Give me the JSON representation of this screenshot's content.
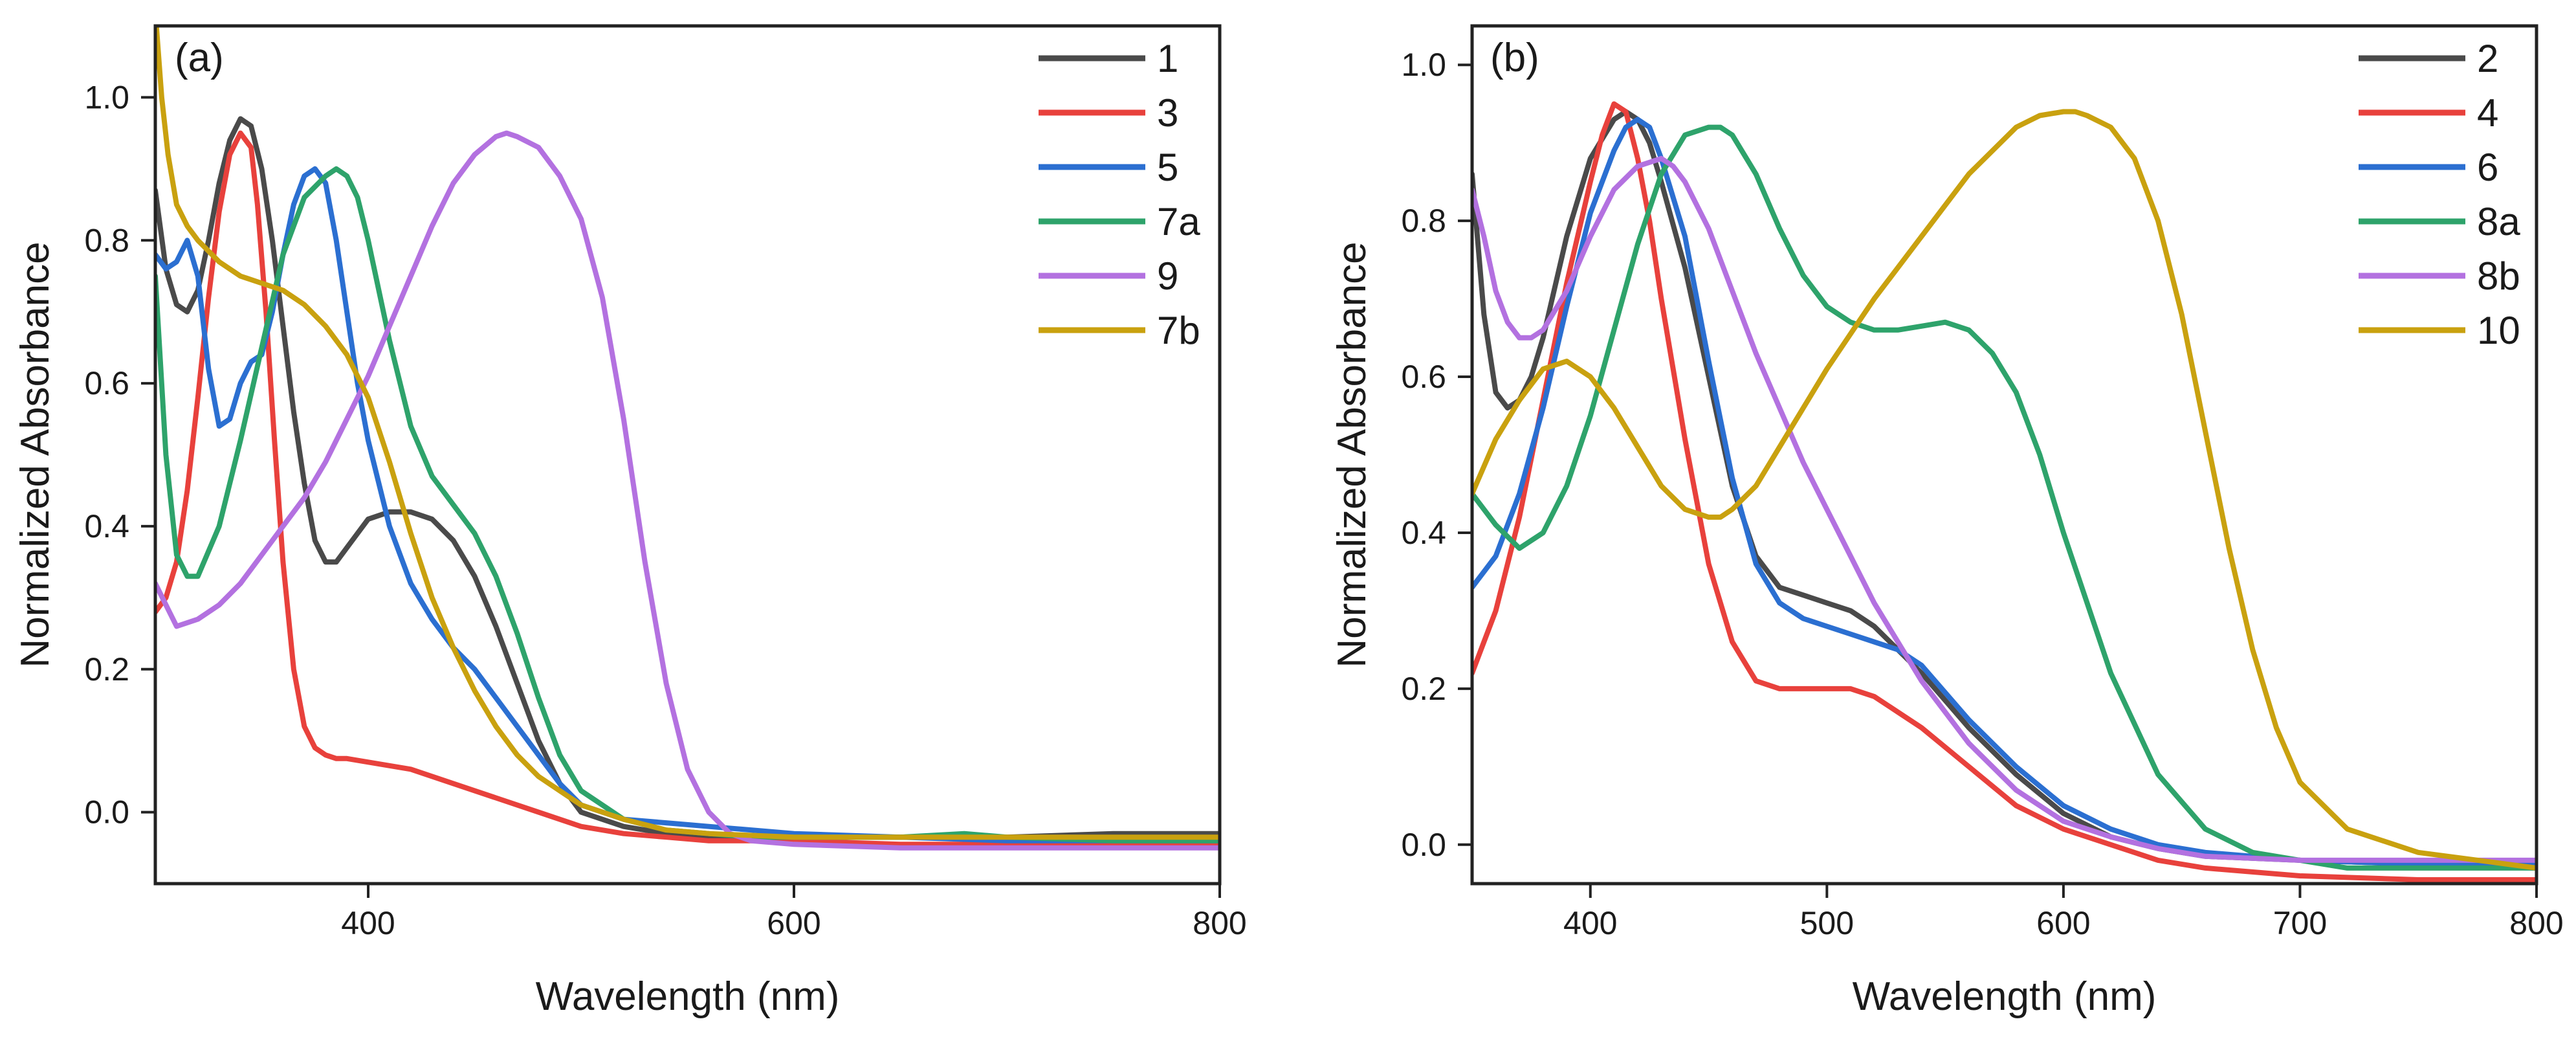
{
  "chart_data": [
    {
      "type": "line",
      "panel_label": "(a)",
      "xlabel": "Wavelength (nm)",
      "ylabel": "Normalized Absorbance",
      "xlim": [
        300,
        800
      ],
      "ylim": [
        -0.1,
        1.1
      ],
      "xticks": [
        400,
        600,
        800
      ],
      "yticks": [
        0.0,
        0.2,
        0.4,
        0.6,
        0.8,
        1.0
      ],
      "ytick_labels": [
        "0.0",
        "0.2",
        "0.4",
        "0.6",
        "0.8",
        "1.0"
      ],
      "grid": false,
      "legend_position": "top-right",
      "series": [
        {
          "name": "1",
          "color": "#4a4a4a",
          "x": [
            300,
            305,
            310,
            315,
            320,
            325,
            330,
            335,
            340,
            345,
            350,
            355,
            360,
            365,
            370,
            375,
            380,
            385,
            390,
            395,
            400,
            410,
            420,
            430,
            440,
            450,
            460,
            470,
            480,
            490,
            500,
            520,
            540,
            560,
            580,
            600,
            650,
            700,
            750,
            800
          ],
          "y": [
            0.87,
            0.76,
            0.71,
            0.7,
            0.73,
            0.8,
            0.88,
            0.94,
            0.97,
            0.96,
            0.9,
            0.8,
            0.68,
            0.56,
            0.46,
            0.38,
            0.35,
            0.35,
            0.37,
            0.39,
            0.41,
            0.42,
            0.42,
            0.41,
            0.38,
            0.33,
            0.26,
            0.18,
            0.1,
            0.04,
            0.0,
            -0.02,
            -0.03,
            -0.035,
            -0.035,
            -0.035,
            -0.035,
            -0.035,
            -0.03,
            -0.03
          ]
        },
        {
          "name": "3",
          "color": "#e8413c",
          "x": [
            300,
            305,
            310,
            315,
            320,
            325,
            330,
            335,
            340,
            345,
            348,
            352,
            356,
            360,
            365,
            370,
            375,
            380,
            385,
            390,
            400,
            420,
            440,
            460,
            480,
            500,
            520,
            540,
            560,
            600,
            650,
            700,
            750,
            800
          ],
          "y": [
            0.28,
            0.3,
            0.35,
            0.45,
            0.58,
            0.72,
            0.84,
            0.92,
            0.95,
            0.93,
            0.85,
            0.7,
            0.52,
            0.35,
            0.2,
            0.12,
            0.09,
            0.08,
            0.075,
            0.075,
            0.07,
            0.06,
            0.04,
            0.02,
            0.0,
            -0.02,
            -0.03,
            -0.035,
            -0.04,
            -0.04,
            -0.045,
            -0.045,
            -0.045,
            -0.045
          ]
        },
        {
          "name": "5",
          "color": "#2b6fd1",
          "x": [
            300,
            305,
            310,
            315,
            320,
            325,
            330,
            335,
            340,
            345,
            350,
            355,
            360,
            365,
            370,
            375,
            380,
            385,
            390,
            395,
            400,
            410,
            420,
            430,
            440,
            450,
            460,
            470,
            480,
            490,
            500,
            520,
            540,
            560,
            600,
            650,
            700,
            750,
            800
          ],
          "y": [
            0.78,
            0.76,
            0.77,
            0.8,
            0.75,
            0.62,
            0.54,
            0.55,
            0.6,
            0.63,
            0.64,
            0.7,
            0.78,
            0.85,
            0.89,
            0.9,
            0.88,
            0.8,
            0.7,
            0.6,
            0.52,
            0.4,
            0.32,
            0.27,
            0.23,
            0.2,
            0.16,
            0.12,
            0.08,
            0.04,
            0.01,
            -0.01,
            -0.015,
            -0.02,
            -0.03,
            -0.035,
            -0.04,
            -0.04,
            -0.04
          ]
        },
        {
          "name": "7a",
          "color": "#2ea36b",
          "x": [
            300,
            305,
            310,
            315,
            320,
            330,
            340,
            350,
            360,
            370,
            380,
            385,
            390,
            395,
            400,
            410,
            420,
            430,
            440,
            450,
            460,
            470,
            480,
            490,
            500,
            520,
            540,
            560,
            580,
            600,
            650,
            680,
            700,
            750,
            800
          ],
          "y": [
            0.75,
            0.5,
            0.36,
            0.33,
            0.33,
            0.4,
            0.52,
            0.65,
            0.78,
            0.86,
            0.89,
            0.9,
            0.89,
            0.86,
            0.8,
            0.66,
            0.54,
            0.47,
            0.43,
            0.39,
            0.33,
            0.25,
            0.16,
            0.08,
            0.03,
            -0.01,
            -0.025,
            -0.03,
            -0.035,
            -0.035,
            -0.035,
            -0.03,
            -0.035,
            -0.04,
            -0.04
          ]
        },
        {
          "name": "9",
          "color": "#b371e0",
          "x": [
            300,
            310,
            320,
            330,
            340,
            350,
            360,
            370,
            380,
            390,
            400,
            410,
            420,
            430,
            440,
            450,
            460,
            465,
            470,
            480,
            490,
            500,
            510,
            520,
            530,
            540,
            550,
            560,
            570,
            580,
            600,
            650,
            700,
            750,
            800
          ],
          "y": [
            0.32,
            0.26,
            0.27,
            0.29,
            0.32,
            0.36,
            0.4,
            0.44,
            0.49,
            0.55,
            0.61,
            0.68,
            0.75,
            0.82,
            0.88,
            0.92,
            0.945,
            0.95,
            0.945,
            0.93,
            0.89,
            0.83,
            0.72,
            0.55,
            0.35,
            0.18,
            0.06,
            0.0,
            -0.03,
            -0.04,
            -0.045,
            -0.05,
            -0.05,
            -0.05,
            -0.05
          ]
        },
        {
          "name": "7b",
          "color": "#c9a10f",
          "x": [
            300,
            303,
            306,
            310,
            315,
            320,
            330,
            340,
            350,
            360,
            370,
            380,
            390,
            400,
            410,
            420,
            430,
            440,
            450,
            460,
            470,
            480,
            490,
            500,
            520,
            540,
            560,
            600,
            650,
            700,
            750,
            800
          ],
          "y": [
            1.12,
            1.0,
            0.92,
            0.85,
            0.82,
            0.8,
            0.77,
            0.75,
            0.74,
            0.73,
            0.71,
            0.68,
            0.64,
            0.58,
            0.49,
            0.39,
            0.3,
            0.23,
            0.17,
            0.12,
            0.08,
            0.05,
            0.03,
            0.01,
            -0.01,
            -0.025,
            -0.03,
            -0.035,
            -0.035,
            -0.035,
            -0.035,
            -0.035
          ]
        }
      ]
    },
    {
      "type": "line",
      "panel_label": "(b)",
      "xlabel": "Wavelength (nm)",
      "ylabel": "Normalized Absorbance",
      "xlim": [
        350,
        800
      ],
      "ylim": [
        -0.05,
        1.05
      ],
      "xticks": [
        400,
        500,
        600,
        700,
        800
      ],
      "yticks": [
        0.0,
        0.2,
        0.4,
        0.6,
        0.8,
        1.0
      ],
      "ytick_labels": [
        "0.0",
        "0.2",
        "0.4",
        "0.6",
        "0.8",
        "1.0"
      ],
      "grid": false,
      "legend_position": "top-right",
      "series": [
        {
          "name": "2",
          "color": "#4a4a4a",
          "x": [
            350,
            355,
            360,
            365,
            370,
            375,
            380,
            390,
            400,
            410,
            415,
            420,
            425,
            430,
            440,
            450,
            460,
            470,
            480,
            490,
            500,
            510,
            520,
            530,
            540,
            560,
            580,
            600,
            620,
            640,
            660,
            700,
            750,
            800
          ],
          "y": [
            0.86,
            0.68,
            0.58,
            0.56,
            0.57,
            0.6,
            0.65,
            0.78,
            0.88,
            0.93,
            0.94,
            0.93,
            0.9,
            0.85,
            0.74,
            0.6,
            0.46,
            0.37,
            0.33,
            0.32,
            0.31,
            0.3,
            0.28,
            0.25,
            0.22,
            0.15,
            0.09,
            0.04,
            0.01,
            -0.005,
            -0.015,
            -0.02,
            -0.025,
            -0.03
          ]
        },
        {
          "name": "4",
          "color": "#e8413c",
          "x": [
            350,
            360,
            370,
            380,
            390,
            400,
            405,
            410,
            415,
            420,
            425,
            430,
            440,
            450,
            460,
            470,
            480,
            490,
            500,
            510,
            520,
            530,
            540,
            560,
            580,
            600,
            620,
            640,
            660,
            700,
            750,
            800
          ],
          "y": [
            0.22,
            0.3,
            0.42,
            0.57,
            0.72,
            0.85,
            0.91,
            0.95,
            0.94,
            0.88,
            0.8,
            0.7,
            0.52,
            0.36,
            0.26,
            0.21,
            0.2,
            0.2,
            0.2,
            0.2,
            0.19,
            0.17,
            0.15,
            0.1,
            0.05,
            0.02,
            0.0,
            -0.02,
            -0.03,
            -0.04,
            -0.045,
            -0.045
          ]
        },
        {
          "name": "6",
          "color": "#2b6fd1",
          "x": [
            350,
            360,
            370,
            380,
            390,
            400,
            410,
            415,
            420,
            425,
            430,
            440,
            450,
            460,
            470,
            480,
            490,
            500,
            510,
            520,
            530,
            540,
            560,
            580,
            600,
            620,
            640,
            660,
            700,
            750,
            800
          ],
          "y": [
            0.33,
            0.37,
            0.45,
            0.56,
            0.69,
            0.81,
            0.89,
            0.92,
            0.93,
            0.92,
            0.88,
            0.78,
            0.62,
            0.47,
            0.36,
            0.31,
            0.29,
            0.28,
            0.27,
            0.26,
            0.25,
            0.23,
            0.16,
            0.1,
            0.05,
            0.02,
            0.0,
            -0.01,
            -0.02,
            -0.025,
            -0.025
          ]
        },
        {
          "name": "8a",
          "color": "#2ea36b",
          "x": [
            350,
            360,
            370,
            380,
            390,
            400,
            410,
            420,
            430,
            440,
            450,
            455,
            460,
            470,
            480,
            490,
            500,
            510,
            520,
            530,
            540,
            550,
            560,
            570,
            580,
            590,
            600,
            620,
            640,
            660,
            680,
            700,
            720,
            750,
            800
          ],
          "y": [
            0.45,
            0.41,
            0.38,
            0.4,
            0.46,
            0.55,
            0.66,
            0.77,
            0.86,
            0.91,
            0.92,
            0.92,
            0.91,
            0.86,
            0.79,
            0.73,
            0.69,
            0.67,
            0.66,
            0.66,
            0.665,
            0.67,
            0.66,
            0.63,
            0.58,
            0.5,
            0.4,
            0.22,
            0.09,
            0.02,
            -0.01,
            -0.02,
            -0.03,
            -0.03,
            -0.03
          ]
        },
        {
          "name": "8b",
          "color": "#b371e0",
          "x": [
            350,
            355,
            360,
            365,
            370,
            375,
            380,
            390,
            400,
            410,
            420,
            430,
            435,
            440,
            450,
            460,
            470,
            480,
            490,
            500,
            510,
            520,
            530,
            540,
            560,
            580,
            600,
            620,
            640,
            660,
            700,
            750,
            800
          ],
          "y": [
            0.84,
            0.78,
            0.71,
            0.67,
            0.65,
            0.65,
            0.66,
            0.71,
            0.78,
            0.84,
            0.87,
            0.88,
            0.87,
            0.85,
            0.79,
            0.71,
            0.63,
            0.56,
            0.49,
            0.43,
            0.37,
            0.31,
            0.26,
            0.21,
            0.13,
            0.07,
            0.03,
            0.01,
            -0.005,
            -0.015,
            -0.02,
            -0.02,
            -0.02
          ]
        },
        {
          "name": "10",
          "color": "#c9a10f",
          "x": [
            350,
            360,
            370,
            380,
            390,
            400,
            410,
            420,
            430,
            440,
            450,
            455,
            460,
            470,
            480,
            490,
            500,
            520,
            540,
            560,
            580,
            590,
            600,
            605,
            610,
            620,
            630,
            640,
            650,
            660,
            670,
            680,
            690,
            700,
            720,
            750,
            800
          ],
          "y": [
            0.45,
            0.52,
            0.57,
            0.61,
            0.62,
            0.6,
            0.56,
            0.51,
            0.46,
            0.43,
            0.42,
            0.42,
            0.43,
            0.46,
            0.51,
            0.56,
            0.61,
            0.7,
            0.78,
            0.86,
            0.92,
            0.935,
            0.94,
            0.94,
            0.935,
            0.92,
            0.88,
            0.8,
            0.68,
            0.53,
            0.38,
            0.25,
            0.15,
            0.08,
            0.02,
            -0.01,
            -0.03
          ]
        }
      ]
    }
  ]
}
